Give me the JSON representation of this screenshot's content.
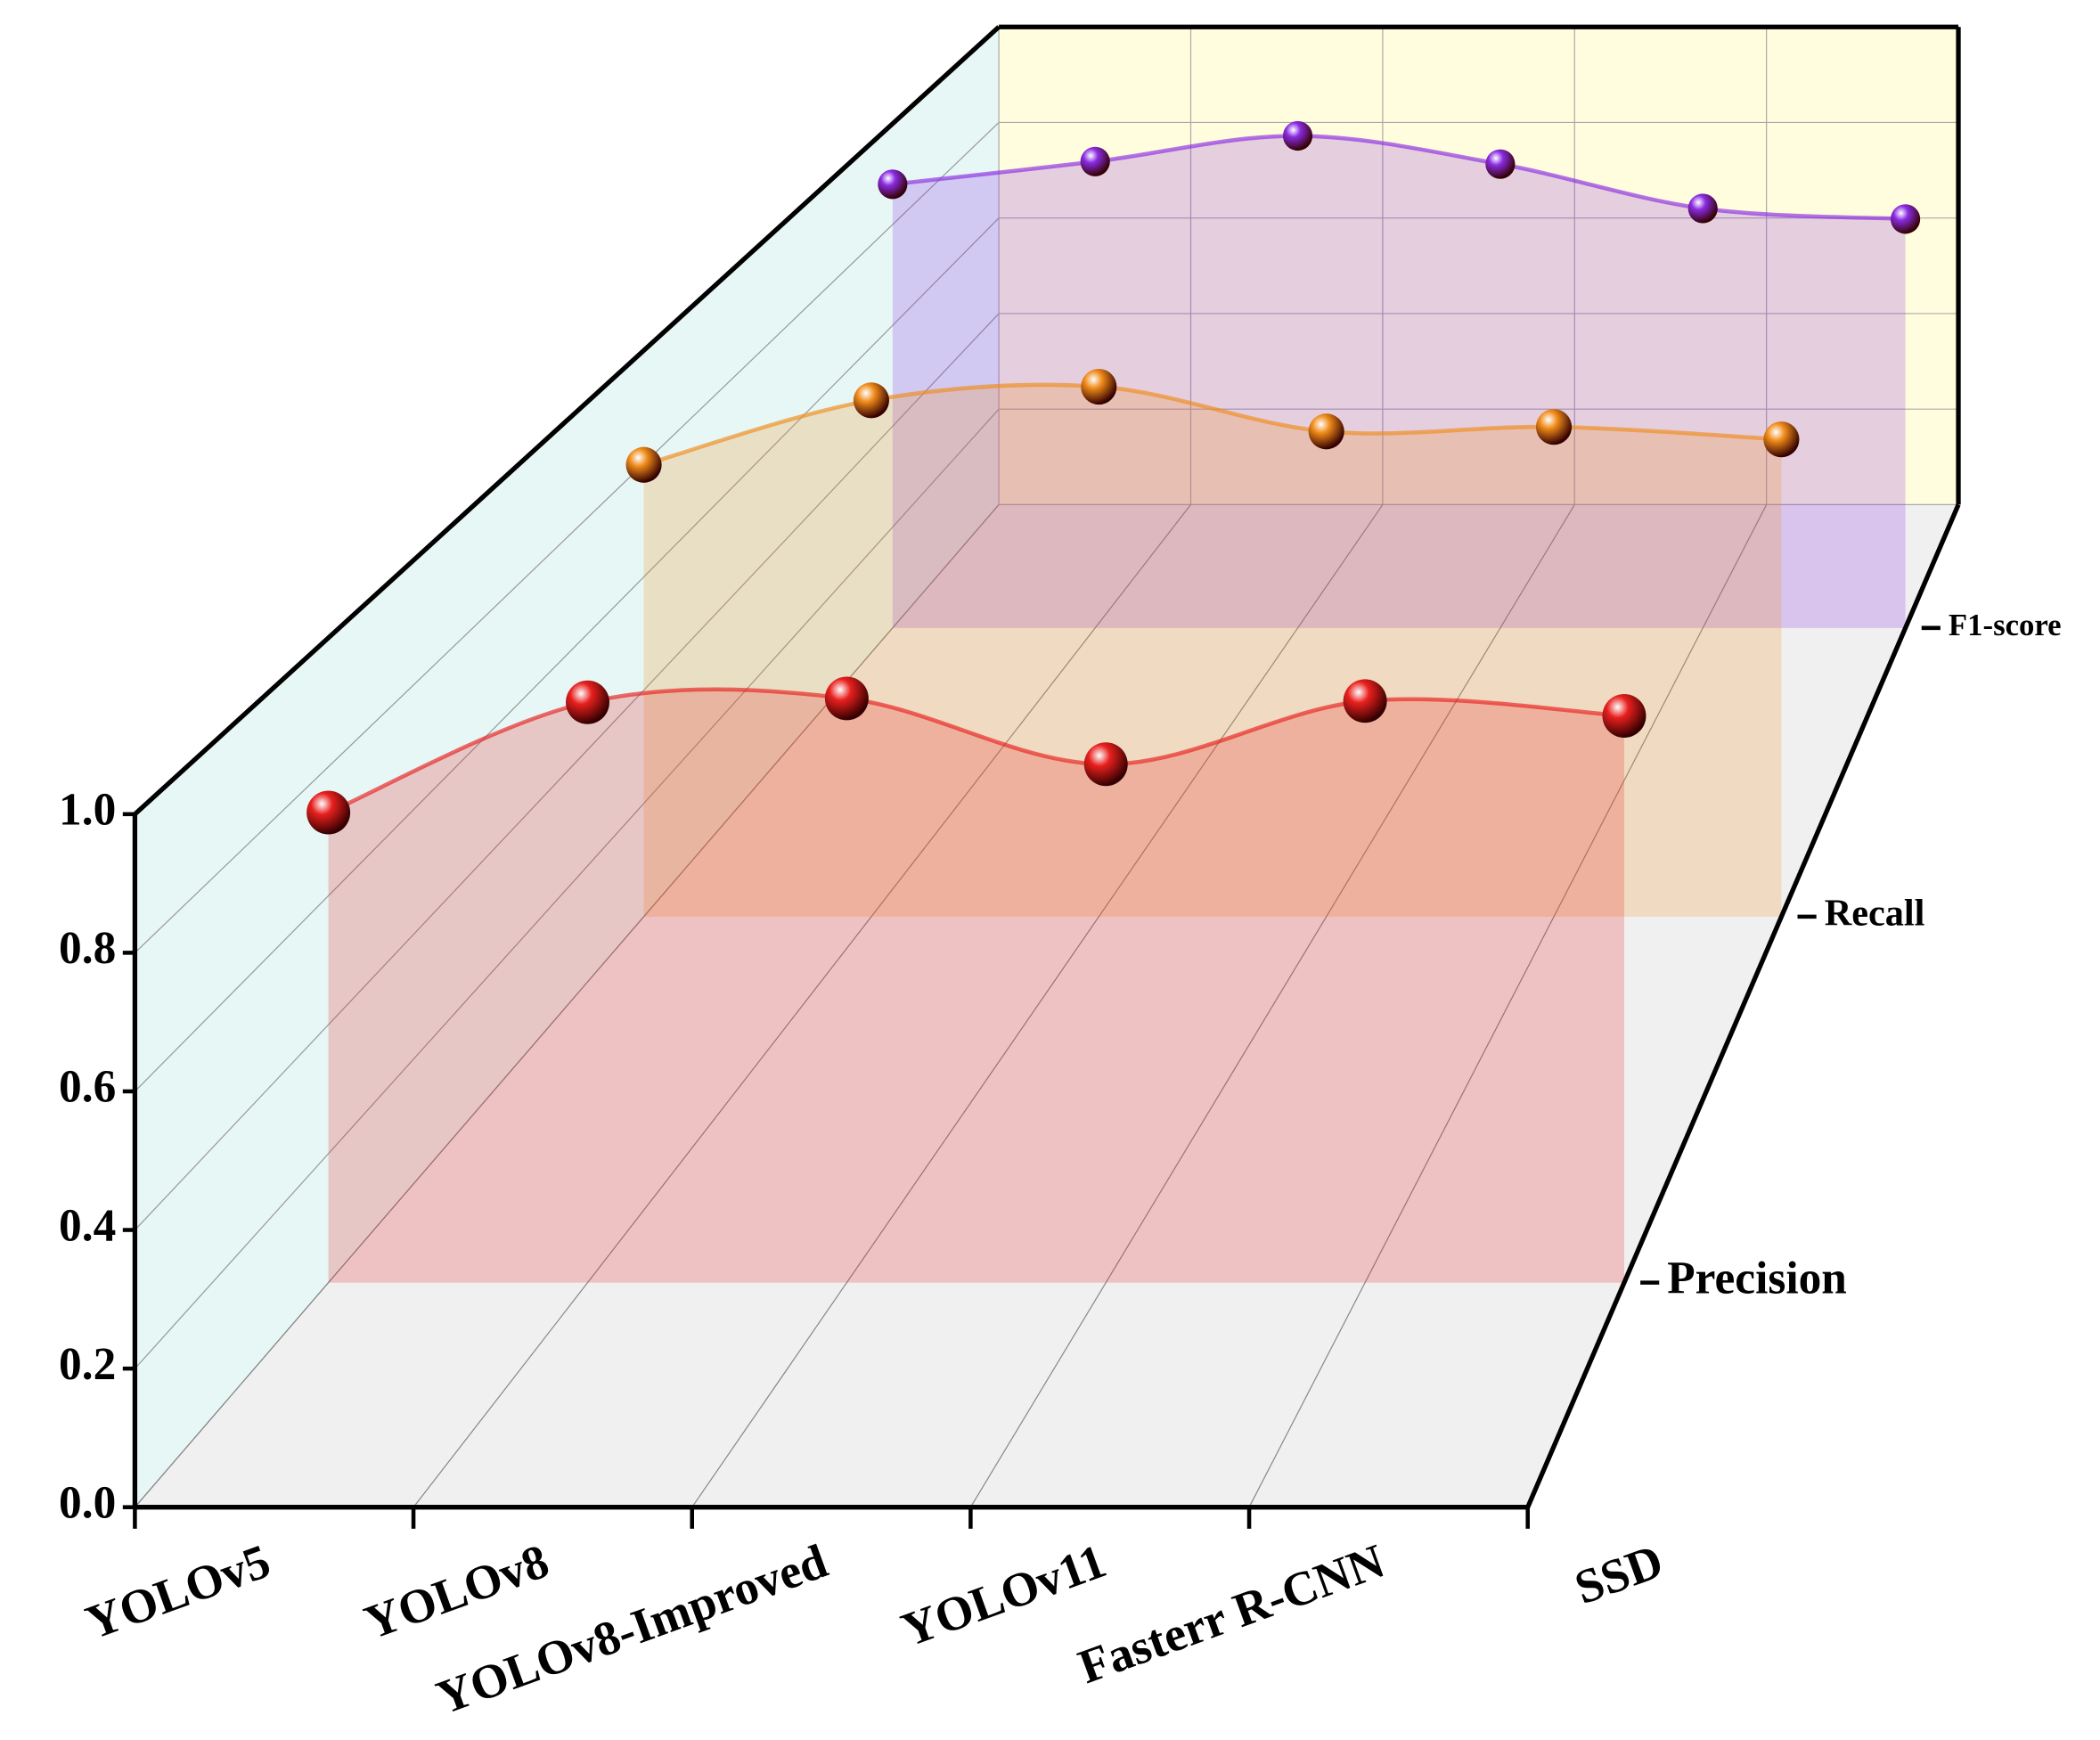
{
  "chart_data": {
    "type": "line3d",
    "categories": [
      "YOLOv5",
      "YOLOv8",
      "YOLOv8-Improved",
      "YOLOv11",
      "Fasterr R-CNN",
      "SSD"
    ],
    "series": [
      {
        "name": "Precision",
        "color": "#e8201e",
        "values": [
          0.729,
          0.9,
          0.906,
          0.804,
          0.902,
          0.879
        ]
      },
      {
        "name": "Recall",
        "color": "#f08c1a",
        "values": [
          0.798,
          0.912,
          0.936,
          0.857,
          0.865,
          0.843
        ]
      },
      {
        "name": "F1-score",
        "color": "#8a2be2",
        "values": [
          0.88,
          0.925,
          0.976,
          0.92,
          0.832,
          0.811
        ]
      }
    ],
    "zlim": [
      0,
      1
    ],
    "zticks": [
      {
        "value": 0,
        "label": "0.0"
      },
      {
        "value": 0.2,
        "label": "0.2"
      },
      {
        "value": 0.4,
        "label": "0.4"
      },
      {
        "value": 0.6,
        "label": "0.6"
      },
      {
        "value": 0.8,
        "label": "0.8"
      },
      {
        "value": 1,
        "label": "1.0"
      }
    ],
    "grid": true
  }
}
